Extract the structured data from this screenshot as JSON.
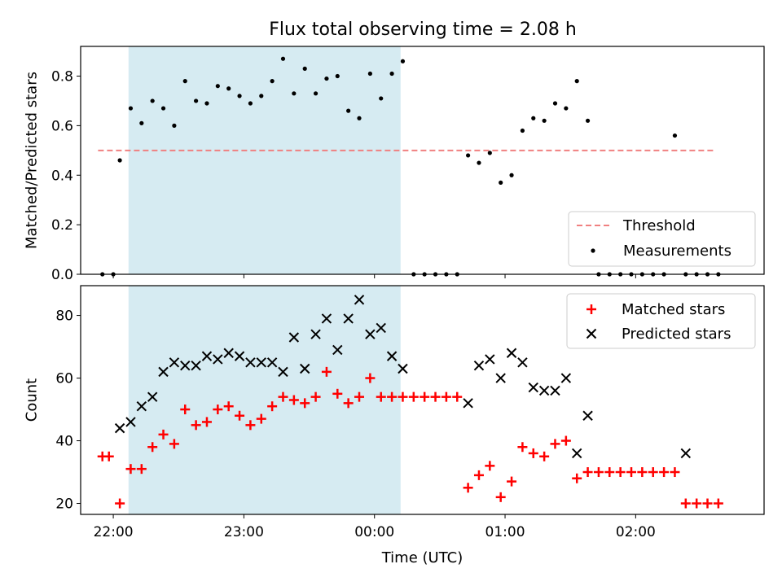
{
  "title": "Flux total observing time = 2.08 h",
  "chart_data": [
    {
      "type": "scatter",
      "ylabel": "Matched/Predicted stars",
      "xlabel": "",
      "xlim": [
        "21:45",
        "02:59"
      ],
      "ylim": [
        0,
        0.92
      ],
      "yticks": [
        0.0,
        0.2,
        0.4,
        0.6,
        0.8
      ],
      "ytick_labels": [
        "0.0",
        "0.2",
        "0.4",
        "0.6",
        "0.8"
      ],
      "xticks": [
        "22:00",
        "23:00",
        "00:00",
        "01:00",
        "02:00"
      ],
      "shaded_region": {
        "x0": "22:07",
        "x1": "00:12",
        "color": "#add8e6"
      },
      "threshold": {
        "name": "Threshold",
        "y": 0.5,
        "x0": "21:53",
        "x1": "02:37",
        "color": "#f08080",
        "style": "dashed"
      },
      "legend": {
        "placement": "lower right",
        "entries": [
          "Threshold",
          "Measurements"
        ]
      },
      "series": [
        {
          "name": "Measurements",
          "color": "#000000",
          "marker": "dot",
          "x": [
            "21:55",
            "22:00",
            "22:03",
            "22:08",
            "22:13",
            "22:18",
            "22:23",
            "22:28",
            "22:33",
            "22:38",
            "22:43",
            "22:48",
            "22:53",
            "22:58",
            "23:03",
            "23:08",
            "23:13",
            "23:18",
            "23:23",
            "23:28",
            "23:33",
            "23:38",
            "23:43",
            "23:48",
            "23:53",
            "23:58",
            "00:03",
            "00:08",
            "00:13",
            "00:18",
            "00:23",
            "00:28",
            "00:33",
            "00:38",
            "00:43",
            "00:48",
            "00:53",
            "00:58",
            "01:03",
            "01:08",
            "01:13",
            "01:18",
            "01:23",
            "01:28",
            "01:33",
            "01:38",
            "01:43",
            "01:48",
            "01:53",
            "01:58",
            "02:03",
            "02:08",
            "02:13",
            "02:18",
            "02:23",
            "02:28",
            "02:33",
            "02:38"
          ],
          "y": [
            0.0,
            0.0,
            0.46,
            0.67,
            0.61,
            0.7,
            0.67,
            0.6,
            0.78,
            0.7,
            0.69,
            0.76,
            0.75,
            0.72,
            0.69,
            0.72,
            0.78,
            0.87,
            0.73,
            0.83,
            0.73,
            0.79,
            0.8,
            0.66,
            0.63,
            0.81,
            0.71,
            0.81,
            0.86,
            0.0,
            0.0,
            0.0,
            0.0,
            0.0,
            0.48,
            0.45,
            0.49,
            0.37,
            0.4,
            0.58,
            0.63,
            0.62,
            0.69,
            0.67,
            0.78,
            0.62,
            0.0,
            0.0,
            0.0,
            0.0,
            0.0,
            0.0,
            0.0,
            0.56,
            0.0,
            0.0,
            0.0,
            0.0
          ]
        }
      ]
    },
    {
      "type": "scatter",
      "ylabel": "Count",
      "xlabel": "Time (UTC)",
      "xlim": [
        "21:45",
        "02:59"
      ],
      "ylim": [
        16.5,
        89.5
      ],
      "yticks": [
        20,
        40,
        60,
        80
      ],
      "ytick_labels": [
        "20",
        "40",
        "60",
        "80"
      ],
      "xticks": [
        "22:00",
        "23:00",
        "00:00",
        "01:00",
        "02:00"
      ],
      "shaded_region": {
        "x0": "22:07",
        "x1": "00:12",
        "color": "#add8e6"
      },
      "legend": {
        "placement": "upper right",
        "entries": [
          "Matched stars",
          "Predicted stars"
        ]
      },
      "series": [
        {
          "name": "Matched stars",
          "color": "#ff0000",
          "marker": "plus",
          "x": [
            "21:55",
            "21:58",
            "22:03",
            "22:08",
            "22:13",
            "22:18",
            "22:23",
            "22:28",
            "22:33",
            "22:38",
            "22:43",
            "22:48",
            "22:53",
            "22:58",
            "23:03",
            "23:08",
            "23:13",
            "23:18",
            "23:23",
            "23:28",
            "23:33",
            "23:38",
            "23:43",
            "23:48",
            "23:53",
            "23:58",
            "00:03",
            "00:08",
            "00:13",
            "00:18",
            "00:23",
            "00:28",
            "00:33",
            "00:38",
            "00:43",
            "00:48",
            "00:53",
            "00:58",
            "01:03",
            "01:08",
            "01:13",
            "01:18",
            "01:23",
            "01:28",
            "01:33",
            "01:38",
            "01:43",
            "01:48",
            "01:53",
            "01:58",
            "02:03",
            "02:08",
            "02:13",
            "02:18",
            "02:23",
            "02:28",
            "02:33",
            "02:38"
          ],
          "y": [
            35,
            35,
            20,
            31,
            31,
            38,
            42,
            39,
            50,
            45,
            46,
            50,
            51,
            48,
            45,
            47,
            51,
            54,
            53,
            52,
            54,
            62,
            55,
            52,
            54,
            60,
            54,
            54,
            54,
            54,
            54,
            54,
            54,
            54,
            25,
            29,
            32,
            22,
            27,
            38,
            36,
            35,
            39,
            40,
            28,
            30,
            30,
            30,
            30,
            30,
            30,
            30,
            30,
            30,
            20,
            20,
            20,
            20
          ]
        },
        {
          "name": "Predicted stars",
          "color": "#000000",
          "marker": "x",
          "x": [
            "22:03",
            "22:08",
            "22:13",
            "22:18",
            "22:23",
            "22:28",
            "22:33",
            "22:38",
            "22:43",
            "22:48",
            "22:53",
            "22:58",
            "23:03",
            "23:08",
            "23:13",
            "23:18",
            "23:23",
            "23:28",
            "23:33",
            "23:38",
            "23:43",
            "23:48",
            "23:53",
            "23:58",
            "00:03",
            "00:08",
            "00:13",
            "00:43",
            "00:48",
            "00:53",
            "00:58",
            "01:03",
            "01:08",
            "01:13",
            "01:18",
            "01:23",
            "01:28",
            "01:33",
            "01:38",
            "02:23"
          ],
          "y": [
            44,
            46,
            51,
            54,
            62,
            65,
            64,
            64,
            67,
            66,
            68,
            67,
            65,
            65,
            65,
            62,
            73,
            63,
            74,
            79,
            69,
            79,
            85,
            74,
            76,
            67,
            63,
            52,
            64,
            66,
            60,
            68,
            65,
            57,
            56,
            56,
            60,
            36,
            48,
            36
          ]
        }
      ]
    }
  ]
}
